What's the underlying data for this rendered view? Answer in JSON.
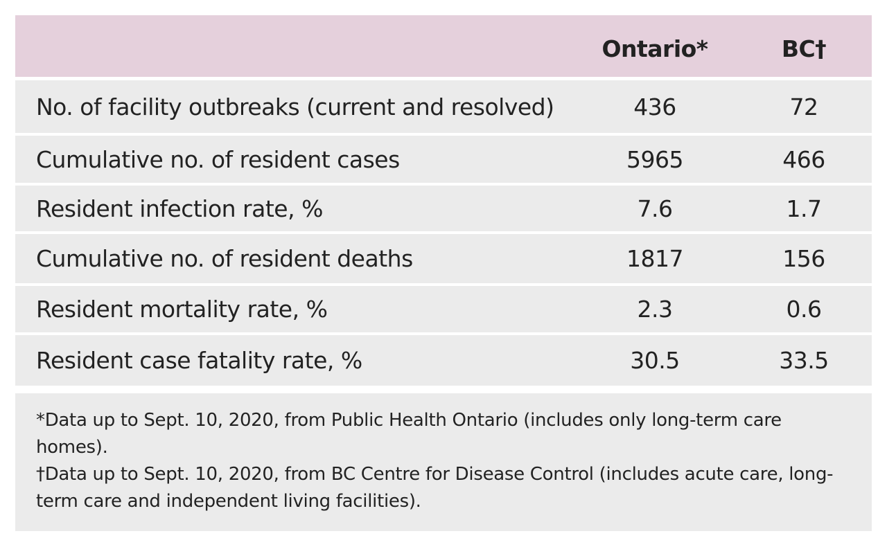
{
  "table": {
    "header": [
      "Ontario*",
      "BC†"
    ],
    "rows": [
      [
        "No. of facility outbreaks (current and resolved)",
        436,
        72
      ],
      [
        "Cumulative no. of resident cases",
        5965,
        466
      ],
      [
        "Resident infection rate, %",
        7.6,
        1.7
      ],
      [
        "Cumulative no. of resident deaths",
        1817,
        156
      ],
      [
        "Resident mortality rate, %",
        2.3,
        0.6
      ],
      [
        "Resident case fatality rate, %",
        30.5,
        33.5
      ]
    ]
  },
  "footnotes": [
    "*Data up to Sept. 10, 2020,  from Public Health Ontario (includes only long-term care homes).",
    "†Data up to Sept. 10, 2020, from BC Centre for Disease Control (includes acute care, long-term care and independent living facilities)."
  ]
}
